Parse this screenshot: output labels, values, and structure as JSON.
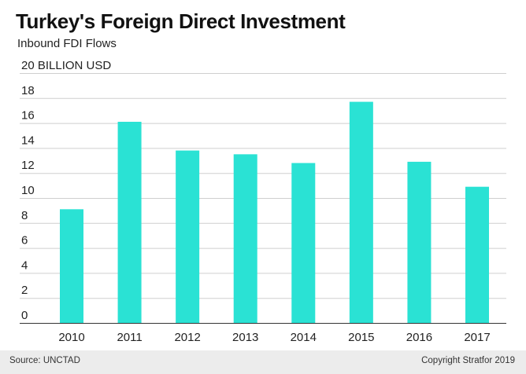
{
  "chart_data": {
    "type": "bar",
    "title": "Turkey's Foreign Direct Investment",
    "subtitle": "Inbound FDI Flows",
    "ylabel": "20 BILLION USD",
    "xlabel": "",
    "categories": [
      "2010",
      "2011",
      "2012",
      "2013",
      "2014",
      "2015",
      "2016",
      "2017"
    ],
    "values": [
      9.1,
      16.1,
      13.8,
      13.5,
      12.8,
      17.7,
      12.9,
      10.9
    ],
    "ylim": [
      0,
      20
    ],
    "yticks": [
      "0",
      "2",
      "4",
      "6",
      "8",
      "10",
      "12",
      "14",
      "16",
      "18"
    ],
    "grid": true,
    "bar_color": "#2ae2d4"
  },
  "footer": {
    "source": "Source: UNCTAD",
    "copyright": "Copyright Stratfor 2019"
  }
}
